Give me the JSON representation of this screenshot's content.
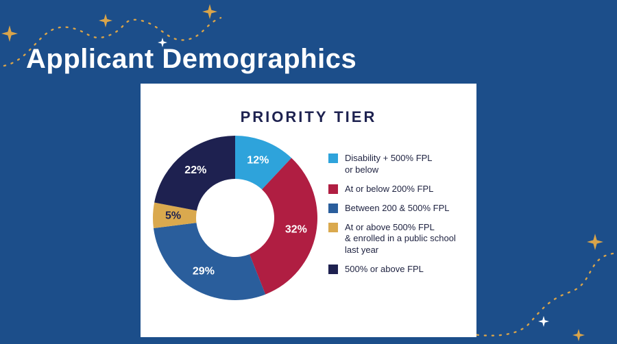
{
  "slide": {
    "title": "Applicant Demographics",
    "background_color": "#1C4E8A",
    "accent_colors": {
      "star_gold": "#D9A44A",
      "star_white": "#FFFFFF"
    }
  },
  "chart_data": {
    "type": "pie",
    "subtype": "donut",
    "title": "PRIORITY TIER",
    "categories": [
      "Disability + 500% FPL\nor below",
      "At or below 200% FPL",
      "Between 200 & 500% FPL",
      "At or above 500% FPL\n& enrolled in a public school\nlast year",
      "500% or above FPL"
    ],
    "values": [
      12,
      32,
      29,
      5,
      22
    ],
    "unit": "%",
    "colors": [
      "#2EA3DB",
      "#B01E42",
      "#2A5E9C",
      "#DAA94E",
      "#1E2150"
    ],
    "label_colors": [
      "#FFFFFF",
      "#FFFFFF",
      "#FFFFFF",
      "#1E2150",
      "#FFFFFF"
    ],
    "start_angle_deg": 0,
    "direction": "clockwise",
    "legend_position": "right",
    "title_color": "#1E2250"
  }
}
